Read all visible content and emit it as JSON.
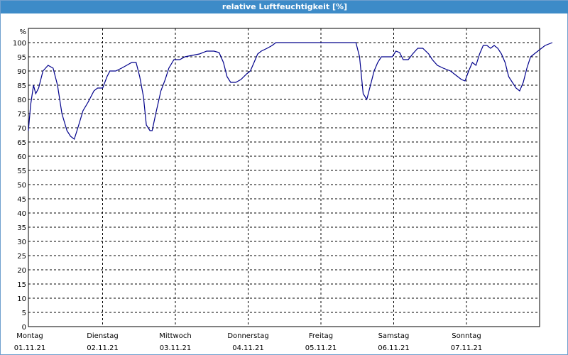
{
  "window": {
    "title": "relative Luftfeuchtigkeit [%]"
  },
  "colors": {
    "titlebar": "#3d8bc8",
    "line": "#00008b",
    "grid": "#000000"
  },
  "chart_data": {
    "type": "line",
    "title": "relative Luftfeuchtigkeit [%]",
    "ylabel": "%",
    "xlabel": "",
    "ylim": [
      0,
      100
    ],
    "yticks": [
      0,
      5,
      10,
      15,
      20,
      25,
      30,
      35,
      40,
      45,
      50,
      55,
      60,
      65,
      70,
      75,
      80,
      85,
      90,
      95,
      100
    ],
    "xlim": [
      0,
      7
    ],
    "grid": true,
    "days": [
      {
        "day": "Montag",
        "date": "01.11.21"
      },
      {
        "day": "Dienstag",
        "date": "02.11.21"
      },
      {
        "day": "Mittwoch",
        "date": "03.11.21"
      },
      {
        "day": "Donnerstag",
        "date": "04.11.21"
      },
      {
        "day": "Freitag",
        "date": "05.11.21"
      },
      {
        "day": "Samstag",
        "date": "06.11.21"
      },
      {
        "day": "Sonntag",
        "date": "07.11.21"
      }
    ],
    "series": [
      {
        "values": [
          [
            0.0,
            69
          ],
          [
            0.03,
            78
          ],
          [
            0.07,
            85
          ],
          [
            0.1,
            82
          ],
          [
            0.14,
            84
          ],
          [
            0.2,
            90
          ],
          [
            0.27,
            92
          ],
          [
            0.34,
            91
          ],
          [
            0.4,
            85
          ],
          [
            0.46,
            75
          ],
          [
            0.53,
            69
          ],
          [
            0.58,
            67
          ],
          [
            0.63,
            66
          ],
          [
            0.68,
            70
          ],
          [
            0.75,
            76
          ],
          [
            0.82,
            79
          ],
          [
            0.9,
            83
          ],
          [
            0.95,
            84
          ],
          [
            1.02,
            84
          ],
          [
            1.08,
            88
          ],
          [
            1.12,
            90
          ],
          [
            1.2,
            90
          ],
          [
            1.28,
            91
          ],
          [
            1.35,
            92
          ],
          [
            1.42,
            93
          ],
          [
            1.48,
            93
          ],
          [
            1.53,
            88
          ],
          [
            1.58,
            81
          ],
          [
            1.62,
            71
          ],
          [
            1.67,
            69
          ],
          [
            1.7,
            69
          ],
          [
            1.75,
            75
          ],
          [
            1.82,
            83
          ],
          [
            1.88,
            87
          ],
          [
            1.93,
            91
          ],
          [
            2.0,
            94
          ],
          [
            2.08,
            94
          ],
          [
            2.15,
            95
          ],
          [
            2.25,
            95.5
          ],
          [
            2.35,
            96
          ],
          [
            2.45,
            97
          ],
          [
            2.55,
            97
          ],
          [
            2.62,
            96.5
          ],
          [
            2.68,
            93
          ],
          [
            2.73,
            88
          ],
          [
            2.78,
            86
          ],
          [
            2.85,
            86
          ],
          [
            2.92,
            87
          ],
          [
            3.0,
            89
          ],
          [
            3.05,
            90
          ],
          [
            3.1,
            93
          ],
          [
            3.15,
            96
          ],
          [
            3.2,
            97
          ],
          [
            3.28,
            98
          ],
          [
            3.35,
            99
          ],
          [
            3.4,
            100
          ],
          [
            3.6,
            100
          ],
          [
            4.0,
            100
          ],
          [
            4.5,
            100
          ],
          [
            4.55,
            95
          ],
          [
            4.6,
            82
          ],
          [
            4.65,
            80
          ],
          [
            4.7,
            85
          ],
          [
            4.75,
            90
          ],
          [
            4.8,
            93
          ],
          [
            4.85,
            95
          ],
          [
            4.95,
            95
          ],
          [
            5.0,
            95
          ],
          [
            5.05,
            97
          ],
          [
            5.1,
            96.5
          ],
          [
            5.15,
            94
          ],
          [
            5.22,
            94
          ],
          [
            5.28,
            96
          ],
          [
            5.35,
            98
          ],
          [
            5.42,
            98
          ],
          [
            5.5,
            96
          ],
          [
            5.55,
            94
          ],
          [
            5.62,
            92
          ],
          [
            5.7,
            91
          ],
          [
            5.8,
            90
          ],
          [
            5.85,
            89
          ],
          [
            5.9,
            88
          ],
          [
            5.95,
            87
          ],
          [
            6.0,
            86.5
          ],
          [
            6.05,
            90
          ],
          [
            6.1,
            93
          ],
          [
            6.15,
            92
          ],
          [
            6.2,
            96
          ],
          [
            6.25,
            99
          ],
          [
            6.3,
            99
          ],
          [
            6.35,
            98
          ],
          [
            6.4,
            99
          ],
          [
            6.45,
            98
          ],
          [
            6.5,
            96
          ],
          [
            6.55,
            93
          ],
          [
            6.6,
            88
          ],
          [
            6.65,
            86
          ],
          [
            6.7,
            84
          ],
          [
            6.75,
            83
          ],
          [
            6.8,
            86
          ],
          [
            6.85,
            91
          ],
          [
            6.9,
            95
          ],
          [
            7.0,
            97
          ],
          [
            7.1,
            99
          ],
          [
            7.2,
            100
          ]
        ]
      }
    ]
  }
}
